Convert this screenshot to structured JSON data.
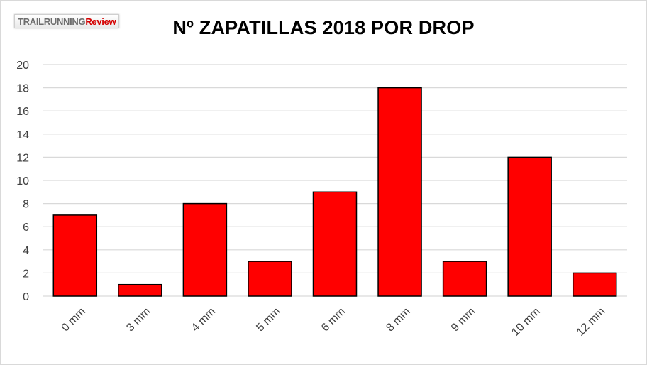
{
  "logo": {
    "part_a": "TRAILRUNNING",
    "part_b": "Review"
  },
  "colors": {
    "bar": "#ff0000",
    "bar_stroke": "#000000",
    "grid": "#d9d9d9",
    "text": "#404040"
  },
  "chart_data": {
    "type": "bar",
    "title": "Nº ZAPATILLAS 2018 POR DROP",
    "xlabel": "",
    "ylabel": "",
    "categories": [
      "0 mm",
      "3 mm",
      "4 mm",
      "5 mm",
      "6 mm",
      "8 mm",
      "9 mm",
      "10 mm",
      "12 mm"
    ],
    "values": [
      7,
      1,
      8,
      3,
      9,
      18,
      3,
      12,
      2
    ],
    "ylim": [
      0,
      20
    ],
    "yticks": [
      0,
      2,
      4,
      6,
      8,
      10,
      12,
      14,
      16,
      18,
      20
    ],
    "grid": true,
    "legend": "none",
    "x_tick_rotation": "45 degrees"
  }
}
